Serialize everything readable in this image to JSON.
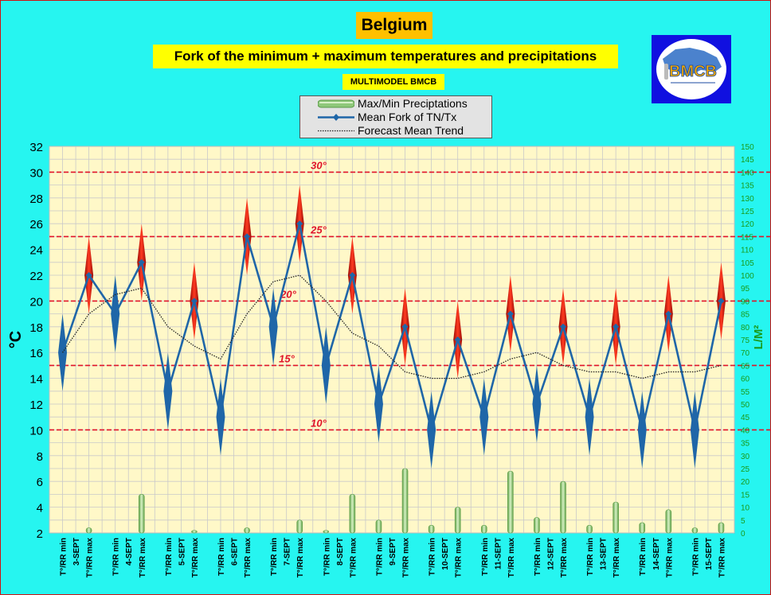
{
  "header": {
    "title": "Belgium",
    "subtitle": "Fork of the minimum + maximum temperatures and precipitations",
    "model": "MULTIMODEL BMCB",
    "logo_text": "BMCB"
  },
  "legend": {
    "precip": "Max/Min Preciptations",
    "mean": "Mean Fork of TN/Tx",
    "trend": "Forecast Mean Trend"
  },
  "colors": {
    "background": "#26F5F0",
    "plot_area": "#FFF8C8",
    "mean_line": "#1F66A8",
    "fork_red": "#E81A10",
    "ref_line": "#E0142A",
    "precip_bar": "#8FC87A",
    "title_bg": "#FFC000",
    "subtitle_bg": "#FFFF00",
    "logo_bg": "#1010E0"
  },
  "chart_data": {
    "type": "line",
    "ylabel": "°C",
    "y2label": "L/M²",
    "ylim": [
      2,
      32
    ],
    "y2lim": [
      0,
      150
    ],
    "yticks": [
      2,
      4,
      6,
      8,
      10,
      12,
      14,
      16,
      18,
      20,
      22,
      24,
      26,
      28,
      30,
      32
    ],
    "y2ticks": [
      0,
      5,
      10,
      15,
      20,
      25,
      30,
      35,
      40,
      45,
      50,
      55,
      60,
      65,
      70,
      75,
      80,
      85,
      90,
      95,
      100,
      105,
      110,
      115,
      120,
      125,
      130,
      135,
      140,
      145,
      150
    ],
    "grid": true,
    "legend_position": "top-center",
    "categories": [
      "T°/RR min",
      "T°/RR max",
      "T°/RR min",
      "T°/RR max",
      "T°/RR min",
      "T°/RR max",
      "T°/RR min",
      "T°/RR max",
      "T°/RR min",
      "T°/RR max",
      "T°/RR min",
      "T°/RR max",
      "T°/RR min",
      "T°/RR max",
      "T°/RR min",
      "T°/RR max",
      "T°/RR min",
      "T°/RR max",
      "T°/RR min",
      "T°/RR max",
      "T°/RR min",
      "T°/RR max",
      "T°/RR min",
      "T°/RR max",
      "T°/RR min",
      "T°/RR max"
    ],
    "day_labels": [
      "3-SEPT",
      "4-SEPT",
      "5-SEPT",
      "6-SEPT",
      "7-SEPT",
      "8-SEPT",
      "9-SEPT",
      "10-SEPT",
      "11-SEPT",
      "12-SEPT",
      "13-SEPT",
      "14-SEPT",
      "15-SEPT"
    ],
    "reference_lines": [
      {
        "value": 30,
        "label": "30°"
      },
      {
        "value": 25,
        "label": "25°"
      },
      {
        "value": 20,
        "label": "20°"
      },
      {
        "value": 15,
        "label": "15°"
      },
      {
        "value": 10,
        "label": "10°"
      }
    ],
    "series": [
      {
        "name": "Mean Fork of TN/Tx",
        "axis": "left",
        "values": [
          16,
          22,
          19,
          23,
          13,
          20,
          11,
          25,
          18,
          26,
          15,
          22,
          12,
          18,
          10,
          17,
          11,
          19,
          12,
          18,
          11,
          18,
          10,
          19,
          10,
          20
        ],
        "fork_low": [
          13,
          19,
          16,
          20,
          10,
          17,
          8,
          22,
          15,
          23,
          12,
          19,
          9,
          15,
          7,
          14,
          8,
          16,
          9,
          15,
          8,
          15,
          7,
          16,
          7,
          17
        ],
        "fork_high": [
          19,
          25,
          22,
          26,
          16,
          23,
          14,
          28,
          21,
          29,
          18,
          25,
          15,
          21,
          13,
          20,
          14,
          22,
          15,
          21,
          14,
          21,
          13,
          22,
          13,
          23
        ]
      },
      {
        "name": "Forecast Mean Trend",
        "axis": "left",
        "values": [
          16,
          19,
          20.5,
          21,
          18,
          16.5,
          15.5,
          19,
          21.5,
          22,
          20,
          17.5,
          16.5,
          14.5,
          14,
          14,
          14.5,
          15.5,
          16,
          15,
          14.5,
          14.5,
          14,
          14.5,
          14.5,
          15
        ]
      },
      {
        "name": "Max/Min Preciptations",
        "axis": "right",
        "values": [
          0,
          2,
          0,
          15,
          0,
          1,
          0,
          2,
          0,
          5,
          1,
          15,
          5,
          25,
          3,
          10,
          3,
          24,
          6,
          20,
          3,
          12,
          4,
          9,
          2,
          4
        ]
      }
    ]
  }
}
